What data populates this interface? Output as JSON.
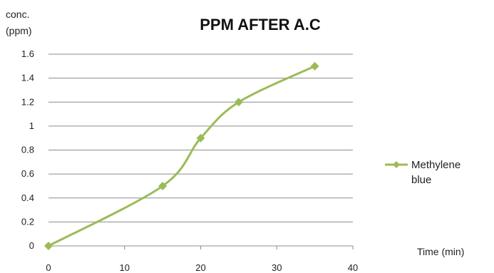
{
  "chart_data": {
    "type": "line",
    "title": "PPM AFTER A.C",
    "ylabel_line1": "conc.",
    "ylabel_line2": "(ppm)",
    "xlabel": "Time (min)",
    "x_ticks": [
      "0",
      "10",
      "20",
      "30",
      "40"
    ],
    "y_ticks": [
      "0",
      "0.2",
      "0.4",
      "0.6",
      "0.8",
      "1",
      "1.2",
      "1.4",
      "1.6"
    ],
    "xlim": [
      0,
      40
    ],
    "ylim": [
      0,
      1.6
    ],
    "grid": "horizontal",
    "legend_position": "right",
    "series": [
      {
        "name_line1": "Methylene",
        "name_line2": "blue",
        "color": "#9BBB59",
        "marker": "diamond",
        "smooth": true,
        "x": [
          0,
          15,
          20,
          25,
          35
        ],
        "y": [
          0,
          0.5,
          0.9,
          1.2,
          1.5
        ]
      }
    ]
  }
}
